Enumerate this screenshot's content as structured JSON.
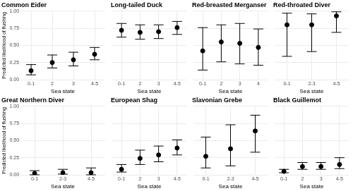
{
  "chart_data": [
    {
      "type": "scatter",
      "title": "Common Eider",
      "categories": [
        "0-1",
        "2",
        "3",
        "4-5"
      ],
      "values": [
        0.13,
        0.25,
        0.29,
        0.37
      ],
      "error_low": [
        0.07,
        0.17,
        0.2,
        0.29
      ],
      "error_high": [
        0.22,
        0.36,
        0.4,
        0.47
      ],
      "color": "#000000",
      "xlabel": "Sea state",
      "ylabel": "Predicted likelihood of flushing",
      "ylim": [
        0,
        1
      ],
      "yticks": [
        {
          "value": 0,
          "label": "0.00"
        },
        {
          "value": 0.25,
          "label": "0.25"
        },
        {
          "value": 0.5,
          "label": "0.50"
        },
        {
          "value": 0.75,
          "label": "0.75"
        },
        {
          "value": 1,
          "label": "1.00"
        }
      ],
      "grid": true
    },
    {
      "type": "scatter",
      "title": "Long-tailed Duck",
      "categories": [
        "0-1",
        "2",
        "3",
        "4-5"
      ],
      "values": [
        0.72,
        0.69,
        0.7,
        0.76
      ],
      "error_low": [
        0.62,
        0.59,
        0.6,
        0.66
      ],
      "error_high": [
        0.82,
        0.8,
        0.8,
        0.85
      ],
      "color": "#000000",
      "xlabel": "Sea state",
      "ylim": [
        0,
        1
      ],
      "yticks": [
        0,
        0.25,
        0.5,
        0.75,
        1
      ],
      "grid": true,
      "tick_labels": "x"
    },
    {
      "type": "scatter",
      "title": "Red-breasted Merganser",
      "categories": [
        "0-1",
        "2",
        "3",
        "4"
      ],
      "values": [
        0.42,
        0.55,
        0.53,
        0.47
      ],
      "error_low": [
        0.14,
        0.26,
        0.23,
        0.21
      ],
      "error_high": [
        0.76,
        0.8,
        0.82,
        0.74
      ],
      "color": "#000000",
      "xlabel": "Sea state",
      "ylim": [
        0,
        1
      ],
      "yticks": [
        0,
        0.25,
        0.5,
        0.75,
        1
      ],
      "grid": true,
      "tick_labels": "x"
    },
    {
      "type": "scatter",
      "title": "Red-throated Diver",
      "categories": [
        "0-1",
        "2-3",
        "4-5"
      ],
      "values": [
        0.8,
        0.8,
        0.93
      ],
      "error_low": [
        0.34,
        0.41,
        0.69
      ],
      "error_high": [
        0.97,
        0.96,
        0.99
      ],
      "color": "#000000",
      "xlabel": "Sea state",
      "ylim": [
        0,
        1
      ],
      "yticks": [
        0,
        0.25,
        0.5,
        0.75,
        1
      ],
      "grid": true,
      "tick_labels": "x"
    },
    {
      "type": "scatter",
      "title": "Great Northern Diver",
      "categories": [
        "0-1",
        "2-3",
        "4-5"
      ],
      "values": [
        0.02,
        0.03,
        0.03
      ],
      "error_low": [
        0.0,
        0.01,
        0.0
      ],
      "error_high": [
        0.06,
        0.08,
        0.1
      ],
      "color": "#000000",
      "xlabel": "Sea state",
      "ylabel": "Predicted likelihood of flushing",
      "ylim": [
        0,
        1
      ],
      "yticks": [
        {
          "value": 0,
          "label": "0.00"
        },
        {
          "value": 0.25,
          "label": "0.25"
        },
        {
          "value": 0.5,
          "label": "0.50"
        },
        {
          "value": 0.75,
          "label": "0.75"
        },
        {
          "value": 1,
          "label": "1.00"
        }
      ],
      "grid": true
    },
    {
      "type": "scatter",
      "title": "European Shag",
      "categories": [
        "0-1",
        "2",
        "3",
        "4-5"
      ],
      "values": [
        0.08,
        0.24,
        0.29,
        0.39
      ],
      "error_low": [
        0.04,
        0.15,
        0.19,
        0.29
      ],
      "error_high": [
        0.15,
        0.36,
        0.42,
        0.51
      ],
      "color": "#000000",
      "xlabel": "Sea state",
      "ylim": [
        0,
        1
      ],
      "yticks": [
        0,
        0.25,
        0.5,
        0.75,
        1
      ],
      "grid": true,
      "tick_labels": "x"
    },
    {
      "type": "scatter",
      "title": "Slavonian Grebe",
      "categories": [
        "0-1",
        "2-3",
        "4-5"
      ],
      "values": [
        0.27,
        0.38,
        0.64
      ],
      "error_low": [
        0.1,
        0.13,
        0.33
      ],
      "error_high": [
        0.55,
        0.73,
        0.87
      ],
      "color": "#000000",
      "xlabel": "Sea state",
      "ylim": [
        0,
        1
      ],
      "yticks": [
        0,
        0.25,
        0.5,
        0.75,
        1
      ],
      "grid": true,
      "tick_labels": "x"
    },
    {
      "type": "scatter",
      "title": "Black Guillemot",
      "categories": [
        "0-1",
        "2",
        "3",
        "4-5"
      ],
      "values": [
        0.05,
        0.12,
        0.12,
        0.15
      ],
      "error_low": [
        0.03,
        0.08,
        0.08,
        0.09
      ],
      "error_high": [
        0.08,
        0.18,
        0.18,
        0.25
      ],
      "color": "#000000",
      "xlabel": "Sea state",
      "ylim": [
        0,
        1
      ],
      "yticks": [
        0,
        0.25,
        0.5,
        0.75,
        1
      ],
      "grid": true,
      "tick_labels": "x"
    }
  ]
}
